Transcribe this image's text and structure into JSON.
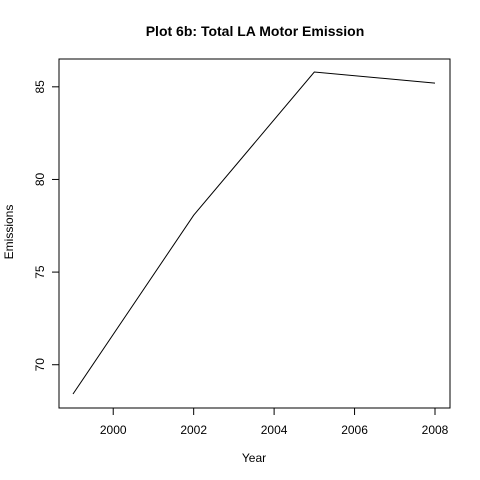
{
  "chart_data": {
    "type": "line",
    "title": "Plot 6b: Total LA Motor Emission",
    "xlabel": "Year",
    "ylabel": "Emissions",
    "x": [
      1999,
      2002,
      2005,
      2008
    ],
    "series": [
      {
        "values": [
          68.42,
          78.07,
          85.8,
          85.2
        ]
      }
    ],
    "xlim": [
      1999,
      2008
    ],
    "ylim": [
      68.42,
      85.8
    ],
    "xticks": [
      2000,
      2002,
      2004,
      2006,
      2008
    ],
    "xtick_labels": [
      "2000",
      "2002",
      "2004",
      "2006",
      "2008"
    ],
    "yticks": [
      70,
      75,
      80,
      85
    ],
    "ytick_labels": [
      "70",
      "75",
      "80",
      "85"
    ],
    "grid": false,
    "legend": "none",
    "line_color": "#000000"
  }
}
